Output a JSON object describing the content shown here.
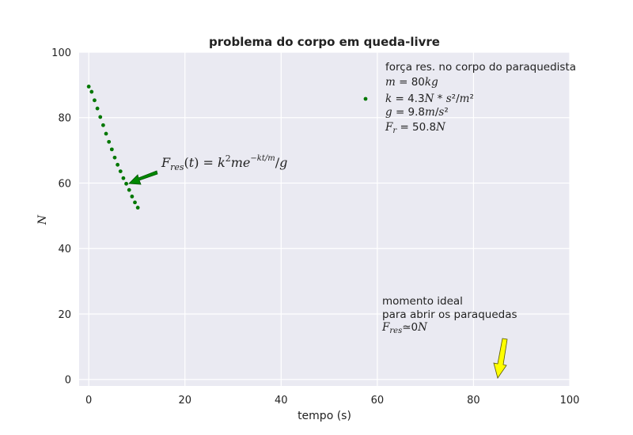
{
  "chart_data": {
    "type": "scatter",
    "title": "problema do corpo em queda-livre",
    "xlabel": "tempo (s)",
    "ylabel": "N",
    "xlim": [
      -2,
      100
    ],
    "ylim": [
      -2,
      100
    ],
    "xticks": [
      0,
      20,
      40,
      60,
      80,
      100
    ],
    "yticks": [
      0,
      20,
      40,
      60,
      80,
      100
    ],
    "xtick_labels": [
      "0",
      "20",
      "40",
      "60",
      "80",
      "100"
    ],
    "ytick_labels": [
      "0",
      "20",
      "40",
      "60",
      "80",
      "100"
    ],
    "grid": true,
    "colors": {
      "background": "#EAEAF2",
      "grid": "#FFFFFF",
      "points": "#007700",
      "arrow_green": "#008800",
      "arrow_yellow": "#FFFF00"
    },
    "series": [
      {
        "x": [
          0,
          0.6,
          1.2,
          1.8,
          2.4,
          3.0,
          3.6,
          4.2,
          4.8,
          5.4,
          6.0,
          6.6,
          7.2,
          7.8,
          8.4,
          9.0,
          9.6,
          10.2
        ],
        "y": [
          89.5,
          87.9,
          85.3,
          82.8,
          80.2,
          77.7,
          75.1,
          72.6,
          70.3,
          67.8,
          65.6,
          63.6,
          61.5,
          59.8,
          57.9,
          55.9,
          54.1,
          52.5
        ]
      }
    ],
    "legend": {
      "position": "top-right",
      "title": "força res. no corpo do paraquedista",
      "lines": [
        "m = 80kg",
        "k = 4.3N * s²/m²",
        "g = 9.8m/s²",
        "Fr = 50.8N"
      ]
    },
    "annotations": [
      {
        "name": "formula",
        "text": "Fres(t) = k²me^(−kt/m)/g",
        "arrow_tip": [
          8,
          60
        ],
        "arrow_color": "green"
      },
      {
        "name": "open-chute",
        "lines": [
          "momento ideal",
          "para abrir os paraquedas",
          "Fres≃0N"
        ],
        "arrow_tip": [
          85,
          1
        ],
        "arrow_color": "yellow"
      }
    ]
  }
}
